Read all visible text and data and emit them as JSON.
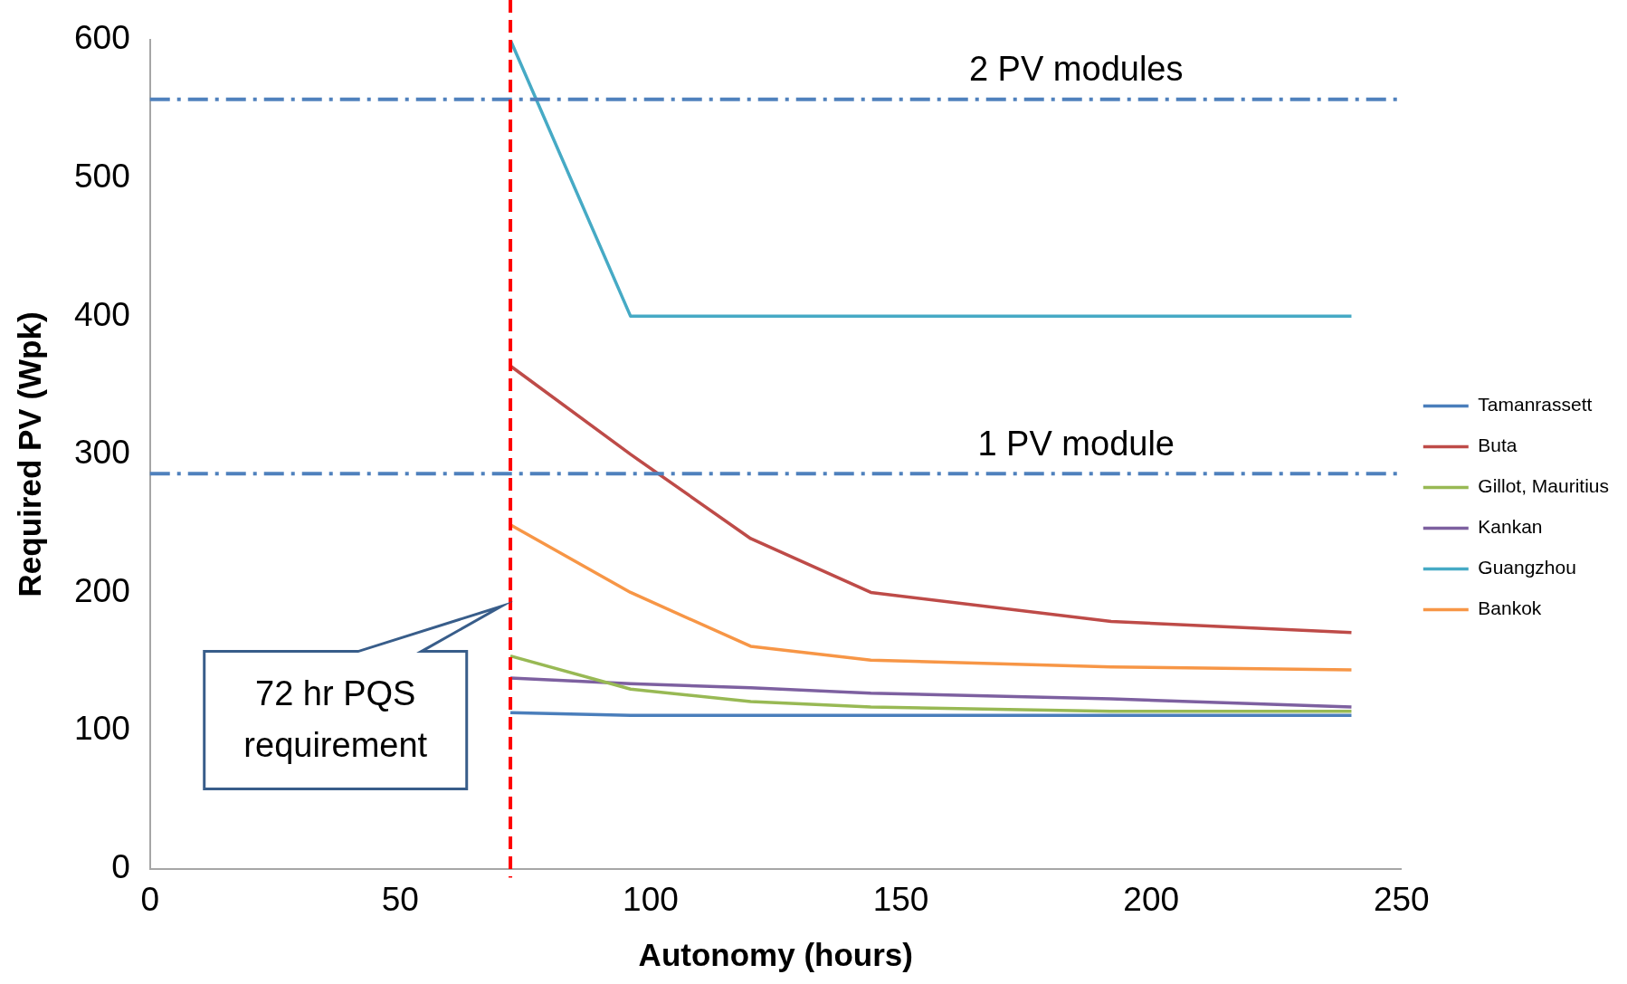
{
  "chart_data": {
    "type": "line",
    "xlabel": "Autonomy (hours)",
    "ylabel": "Required PV (Wpk)",
    "x": [
      72,
      96,
      120,
      144,
      192,
      240
    ],
    "series": [
      {
        "name": "Tamanrassett",
        "color": "#4a7ebb",
        "values": [
          113,
          111,
          111,
          111,
          111,
          111
        ]
      },
      {
        "name": "Buta",
        "color": "#be4b48",
        "values": [
          364,
          300,
          239,
          200,
          179,
          171
        ]
      },
      {
        "name": "Gillot, Mauritius",
        "color": "#98b954",
        "values": [
          154,
          130,
          121,
          117,
          114,
          114
        ]
      },
      {
        "name": "Kankan",
        "color": "#7d60a0",
        "values": [
          138,
          134,
          131,
          127,
          123,
          117
        ]
      },
      {
        "name": "Guangzhou",
        "color": "#46aac5",
        "values": [
          600,
          400,
          400,
          400,
          400,
          400
        ]
      },
      {
        "name": "Bankok",
        "color": "#f79646",
        "values": [
          249,
          200,
          161,
          151,
          146,
          144
        ]
      }
    ],
    "xlim": [
      0,
      250
    ],
    "xticks": [
      0,
      50,
      100,
      150,
      200,
      250
    ],
    "ylim": [
      0,
      600
    ],
    "yticks": [
      0,
      100,
      200,
      300,
      400,
      500,
      600
    ],
    "grid": false,
    "legend": "right",
    "marker": "none",
    "line_style": "solid",
    "ref_lines": [
      {
        "axis": "y",
        "value": 557,
        "label": "2 PV modules",
        "color": "#4f81bd",
        "line_style": "dashdot"
      },
      {
        "axis": "y",
        "value": 286,
        "label": "1 PV module",
        "color": "#4f81bd",
        "line_style": "dashdot"
      },
      {
        "axis": "x",
        "value": 72,
        "label": "72 hr PQS requirement",
        "color": "#ff0000",
        "line_style": "dashed"
      }
    ]
  }
}
